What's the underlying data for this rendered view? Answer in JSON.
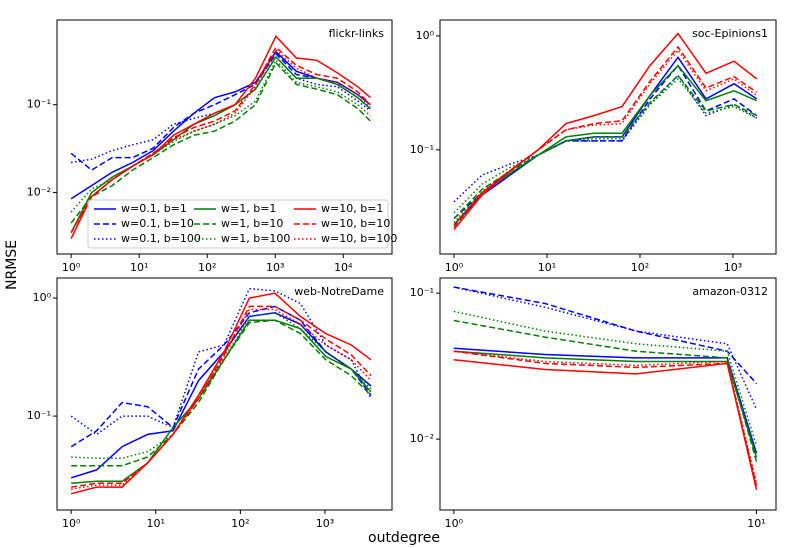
{
  "xlabel": "outdegree",
  "ylabel": "NRMSE",
  "chart_data": [
    {
      "type": "line",
      "title": "flickr-links",
      "xscale": "log",
      "yscale": "log",
      "legend": "lower right",
      "x": [
        1,
        2,
        4,
        8,
        16,
        32,
        64,
        128,
        256,
        512,
        1024,
        2048,
        4096,
        8192,
        16384,
        25000
      ],
      "xlim": [
        0.62,
        52000
      ],
      "ylim": [
        0.002,
        0.92
      ],
      "xticks": [
        {
          "value": 1,
          "label": "10⁰"
        },
        {
          "value": 10,
          "label": "10¹"
        },
        {
          "value": 100,
          "label": "10²"
        },
        {
          "value": 1000,
          "label": "10³"
        },
        {
          "value": 10000,
          "label": "10⁴"
        }
      ],
      "yticks": [
        {
          "value": 0.01,
          "label": "10⁻²"
        },
        {
          "value": 0.1,
          "label": "10⁻¹"
        }
      ],
      "series": [
        {
          "name": "w=0.1, b=1",
          "color": "#0000ff",
          "dash": "solid",
          "values": [
            0.0085,
            0.012,
            0.017,
            0.022,
            0.03,
            0.05,
            0.08,
            0.12,
            0.14,
            0.18,
            0.4,
            0.24,
            0.2,
            0.18,
            0.13,
            0.1
          ]
        },
        {
          "name": "w=0.1, b=10",
          "color": "#0000ff",
          "dash": "dashed",
          "values": [
            0.028,
            0.018,
            0.025,
            0.025,
            0.032,
            0.055,
            0.08,
            0.1,
            0.13,
            0.17,
            0.38,
            0.22,
            0.2,
            0.17,
            0.12,
            0.09
          ]
        },
        {
          "name": "w=0.1, b=100",
          "color": "#0000ff",
          "dash": "dotted",
          "values": [
            0.022,
            0.024,
            0.03,
            0.035,
            0.04,
            0.06,
            0.07,
            0.08,
            0.1,
            0.15,
            0.35,
            0.2,
            0.17,
            0.16,
            0.11,
            0.085
          ]
        },
        {
          "name": "w=1, b=1",
          "color": "#008000",
          "dash": "solid",
          "values": [
            0.0035,
            0.01,
            0.015,
            0.02,
            0.027,
            0.04,
            0.06,
            0.075,
            0.1,
            0.15,
            0.35,
            0.2,
            0.2,
            0.17,
            0.12,
            0.09
          ]
        },
        {
          "name": "w=1, b=10",
          "color": "#008000",
          "dash": "dashed",
          "values": [
            0.0045,
            0.009,
            0.012,
            0.018,
            0.025,
            0.035,
            0.045,
            0.05,
            0.065,
            0.1,
            0.3,
            0.17,
            0.15,
            0.13,
            0.09,
            0.065
          ]
        },
        {
          "name": "w=1, b=100",
          "color": "#008000",
          "dash": "dotted",
          "values": [
            0.006,
            0.011,
            0.014,
            0.02,
            0.027,
            0.038,
            0.05,
            0.06,
            0.075,
            0.11,
            0.32,
            0.18,
            0.16,
            0.14,
            0.1,
            0.075
          ]
        },
        {
          "name": "w=10, b=1",
          "color": "#ff0000",
          "dash": "solid",
          "values": [
            0.003,
            0.009,
            0.014,
            0.02,
            0.027,
            0.045,
            0.06,
            0.08,
            0.1,
            0.2,
            0.6,
            0.34,
            0.32,
            0.23,
            0.16,
            0.12
          ]
        },
        {
          "name": "w=10, b=10",
          "color": "#ff0000",
          "dash": "dashed",
          "values": [
            0.0035,
            0.009,
            0.014,
            0.02,
            0.028,
            0.042,
            0.055,
            0.065,
            0.085,
            0.17,
            0.45,
            0.28,
            0.22,
            0.2,
            0.14,
            0.1
          ]
        },
        {
          "name": "w=10, b=100",
          "color": "#ff0000",
          "dash": "dotted",
          "values": [
            0.0035,
            0.009,
            0.014,
            0.02,
            0.028,
            0.04,
            0.05,
            0.06,
            0.08,
            0.16,
            0.42,
            0.26,
            0.2,
            0.18,
            0.13,
            0.095
          ]
        }
      ]
    },
    {
      "type": "line",
      "title": "soc-Epinions1",
      "xscale": "log",
      "yscale": "log",
      "x": [
        1,
        2,
        4,
        8,
        16,
        32,
        64,
        128,
        256,
        512,
        1024,
        1800
      ],
      "xlim": [
        0.707,
        2900
      ],
      "ylim": [
        0.0122,
        1.38
      ],
      "xticks": [
        {
          "value": 1,
          "label": "10⁰"
        },
        {
          "value": 10,
          "label": "10¹"
        },
        {
          "value": 100,
          "label": "10²"
        },
        {
          "value": 1000,
          "label": "10³"
        }
      ],
      "yticks": [
        {
          "value": 0.1,
          "label": "10⁻¹"
        },
        {
          "value": 1,
          "label": "10⁰"
        }
      ],
      "series": [
        {
          "color": "#0000ff",
          "dash": "solid",
          "values": [
            0.022,
            0.04,
            0.06,
            0.09,
            0.12,
            0.13,
            0.13,
            0.3,
            0.65,
            0.28,
            0.38,
            0.28
          ]
        },
        {
          "color": "#0000ff",
          "dash": "dashed",
          "values": [
            0.025,
            0.042,
            0.065,
            0.09,
            0.12,
            0.12,
            0.12,
            0.28,
            0.55,
            0.22,
            0.28,
            0.2
          ]
        },
        {
          "color": "#0000ff",
          "dash": "dotted",
          "values": [
            0.035,
            0.06,
            0.075,
            0.09,
            0.12,
            0.12,
            0.12,
            0.25,
            0.45,
            0.2,
            0.25,
            0.19
          ]
        },
        {
          "color": "#008000",
          "dash": "solid",
          "values": [
            0.022,
            0.042,
            0.062,
            0.09,
            0.13,
            0.14,
            0.14,
            0.3,
            0.55,
            0.27,
            0.33,
            0.27
          ]
        },
        {
          "color": "#008000",
          "dash": "dashed",
          "values": [
            0.025,
            0.045,
            0.065,
            0.09,
            0.12,
            0.13,
            0.13,
            0.26,
            0.45,
            0.22,
            0.25,
            0.2
          ]
        },
        {
          "color": "#008000",
          "dash": "dotted",
          "values": [
            0.028,
            0.05,
            0.07,
            0.09,
            0.12,
            0.125,
            0.125,
            0.25,
            0.42,
            0.21,
            0.24,
            0.19
          ]
        },
        {
          "color": "#ff0000",
          "dash": "solid",
          "values": [
            0.02,
            0.04,
            0.065,
            0.1,
            0.17,
            0.2,
            0.24,
            0.55,
            1.05,
            0.47,
            0.6,
            0.42
          ]
        },
        {
          "color": "#ff0000",
          "dash": "dashed",
          "values": [
            0.021,
            0.042,
            0.066,
            0.1,
            0.15,
            0.17,
            0.18,
            0.4,
            0.8,
            0.35,
            0.44,
            0.32
          ]
        },
        {
          "color": "#ff0000",
          "dash": "dotted",
          "values": [
            0.023,
            0.043,
            0.066,
            0.1,
            0.15,
            0.165,
            0.17,
            0.38,
            0.75,
            0.33,
            0.42,
            0.3
          ]
        }
      ]
    },
    {
      "type": "line",
      "title": "web-NotreDame",
      "xscale": "log",
      "yscale": "log",
      "x": [
        1,
        2,
        4,
        8,
        16,
        32,
        64,
        128,
        256,
        512,
        1024,
        2048,
        3500
      ],
      "xlim": [
        0.68,
        6200
      ],
      "ylim": [
        0.016,
        1.48
      ],
      "xticks": [
        {
          "value": 1,
          "label": "10⁰"
        },
        {
          "value": 10,
          "label": "10¹"
        },
        {
          "value": 100,
          "label": "10²"
        },
        {
          "value": 1000,
          "label": "10³"
        }
      ],
      "yticks": [
        {
          "value": 0.1,
          "label": "10⁻¹"
        },
        {
          "value": 1,
          "label": "10⁰"
        }
      ],
      "series": [
        {
          "color": "#0000ff",
          "dash": "solid",
          "values": [
            0.03,
            0.035,
            0.055,
            0.07,
            0.075,
            0.2,
            0.35,
            0.7,
            0.75,
            0.6,
            0.35,
            0.25,
            0.18
          ]
        },
        {
          "color": "#0000ff",
          "dash": "dashed",
          "values": [
            0.055,
            0.075,
            0.13,
            0.12,
            0.08,
            0.25,
            0.4,
            0.75,
            0.85,
            0.65,
            0.35,
            0.25,
            0.15
          ]
        },
        {
          "color": "#0000ff",
          "dash": "dotted",
          "values": [
            0.1,
            0.07,
            0.1,
            0.1,
            0.08,
            0.35,
            0.4,
            1.2,
            1.15,
            0.9,
            0.4,
            0.3,
            0.14
          ]
        },
        {
          "color": "#008000",
          "dash": "solid",
          "values": [
            0.027,
            0.028,
            0.028,
            0.04,
            0.08,
            0.14,
            0.3,
            0.65,
            0.65,
            0.55,
            0.32,
            0.25,
            0.16
          ]
        },
        {
          "color": "#008000",
          "dash": "dashed",
          "values": [
            0.038,
            0.038,
            0.038,
            0.045,
            0.07,
            0.13,
            0.3,
            0.62,
            0.65,
            0.5,
            0.3,
            0.22,
            0.15
          ]
        },
        {
          "color": "#008000",
          "dash": "dotted",
          "values": [
            0.045,
            0.044,
            0.044,
            0.05,
            0.07,
            0.15,
            0.3,
            0.7,
            0.75,
            0.55,
            0.35,
            0.25,
            0.17
          ]
        },
        {
          "color": "#ff0000",
          "dash": "solid",
          "values": [
            0.022,
            0.025,
            0.025,
            0.04,
            0.07,
            0.15,
            0.35,
            1.0,
            1.1,
            0.7,
            0.5,
            0.4,
            0.3
          ]
        },
        {
          "color": "#ff0000",
          "dash": "dashed",
          "values": [
            0.025,
            0.027,
            0.027,
            0.04,
            0.07,
            0.14,
            0.33,
            0.85,
            0.85,
            0.65,
            0.45,
            0.33,
            0.22
          ]
        },
        {
          "color": "#ff0000",
          "dash": "dotted",
          "values": [
            0.024,
            0.026,
            0.026,
            0.04,
            0.07,
            0.14,
            0.32,
            0.8,
            0.8,
            0.6,
            0.4,
            0.3,
            0.2
          ]
        }
      ]
    },
    {
      "type": "line",
      "title": "amazon-0312",
      "xscale": "log",
      "yscale": "log",
      "x": [
        1,
        2,
        4,
        8,
        10
      ],
      "xlim": [
        0.9,
        11.6
      ],
      "ylim": [
        0.00327,
        0.127
      ],
      "xticks": [
        {
          "value": 1,
          "label": "10⁰"
        },
        {
          "value": 10,
          "label": "10¹"
        }
      ],
      "yticks": [
        {
          "value": 0.01,
          "label": "10⁻²"
        },
        {
          "value": 0.1,
          "label": "10⁻¹"
        }
      ],
      "series": [
        {
          "color": "#0000ff",
          "dash": "solid",
          "values": [
            0.042,
            0.038,
            0.036,
            0.036,
            0.008
          ]
        },
        {
          "color": "#0000ff",
          "dash": "dashed",
          "values": [
            0.11,
            0.085,
            0.055,
            0.04,
            0.024
          ]
        },
        {
          "color": "#0000ff",
          "dash": "dotted",
          "values": [
            0.11,
            0.08,
            0.055,
            0.045,
            0.016
          ]
        },
        {
          "color": "#008000",
          "dash": "solid",
          "values": [
            0.04,
            0.036,
            0.034,
            0.034,
            0.0075
          ]
        },
        {
          "color": "#008000",
          "dash": "dashed",
          "values": [
            0.065,
            0.05,
            0.04,
            0.036,
            0.007
          ]
        },
        {
          "color": "#008000",
          "dash": "dotted",
          "values": [
            0.075,
            0.055,
            0.045,
            0.04,
            0.009
          ]
        },
        {
          "color": "#ff0000",
          "dash": "solid",
          "values": [
            0.035,
            0.03,
            0.028,
            0.033,
            0.0045
          ]
        },
        {
          "color": "#ff0000",
          "dash": "dashed",
          "values": [
            0.04,
            0.033,
            0.031,
            0.033,
            0.0048
          ]
        },
        {
          "color": "#ff0000",
          "dash": "dotted",
          "values": [
            0.04,
            0.034,
            0.032,
            0.034,
            0.005
          ]
        }
      ]
    }
  ]
}
